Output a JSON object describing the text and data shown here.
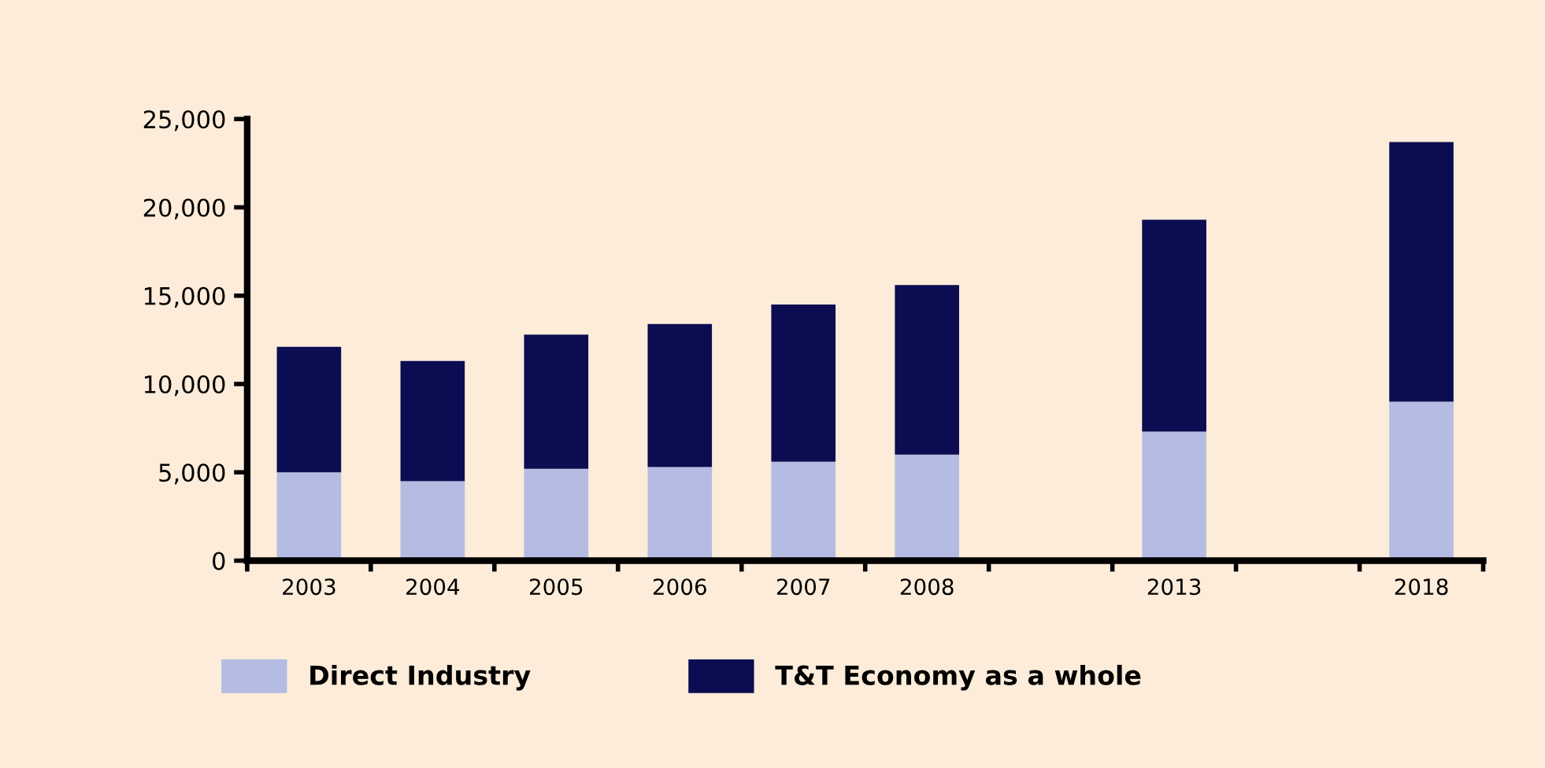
{
  "chart_data": {
    "type": "bar",
    "stacked": true,
    "categories": [
      "2003",
      "2004",
      "2005",
      "2006",
      "2007",
      "2008",
      null,
      "2013",
      null,
      "2018"
    ],
    "series": [
      {
        "name": "Direct Industry",
        "color": "#b4bce3",
        "values": [
          5000,
          4500,
          5200,
          5300,
          5600,
          6000,
          null,
          7300,
          null,
          9000
        ]
      },
      {
        "name": "T&T Economy as a whole",
        "color": "#0c0c52",
        "values": [
          7100,
          6800,
          7600,
          8100,
          8900,
          9600,
          null,
          12000,
          null,
          14700
        ]
      }
    ],
    "ylim": [
      0,
      25000
    ],
    "yticks": [
      {
        "value": 0,
        "label": "0"
      },
      {
        "value": 5000,
        "label": "5,000"
      },
      {
        "value": 10000,
        "label": "10,000"
      },
      {
        "value": 15000,
        "label": "15,000"
      },
      {
        "value": 20000,
        "label": "20,000"
      },
      {
        "value": 25000,
        "label": "25,000"
      }
    ],
    "grid": false,
    "legend": "bottom"
  }
}
